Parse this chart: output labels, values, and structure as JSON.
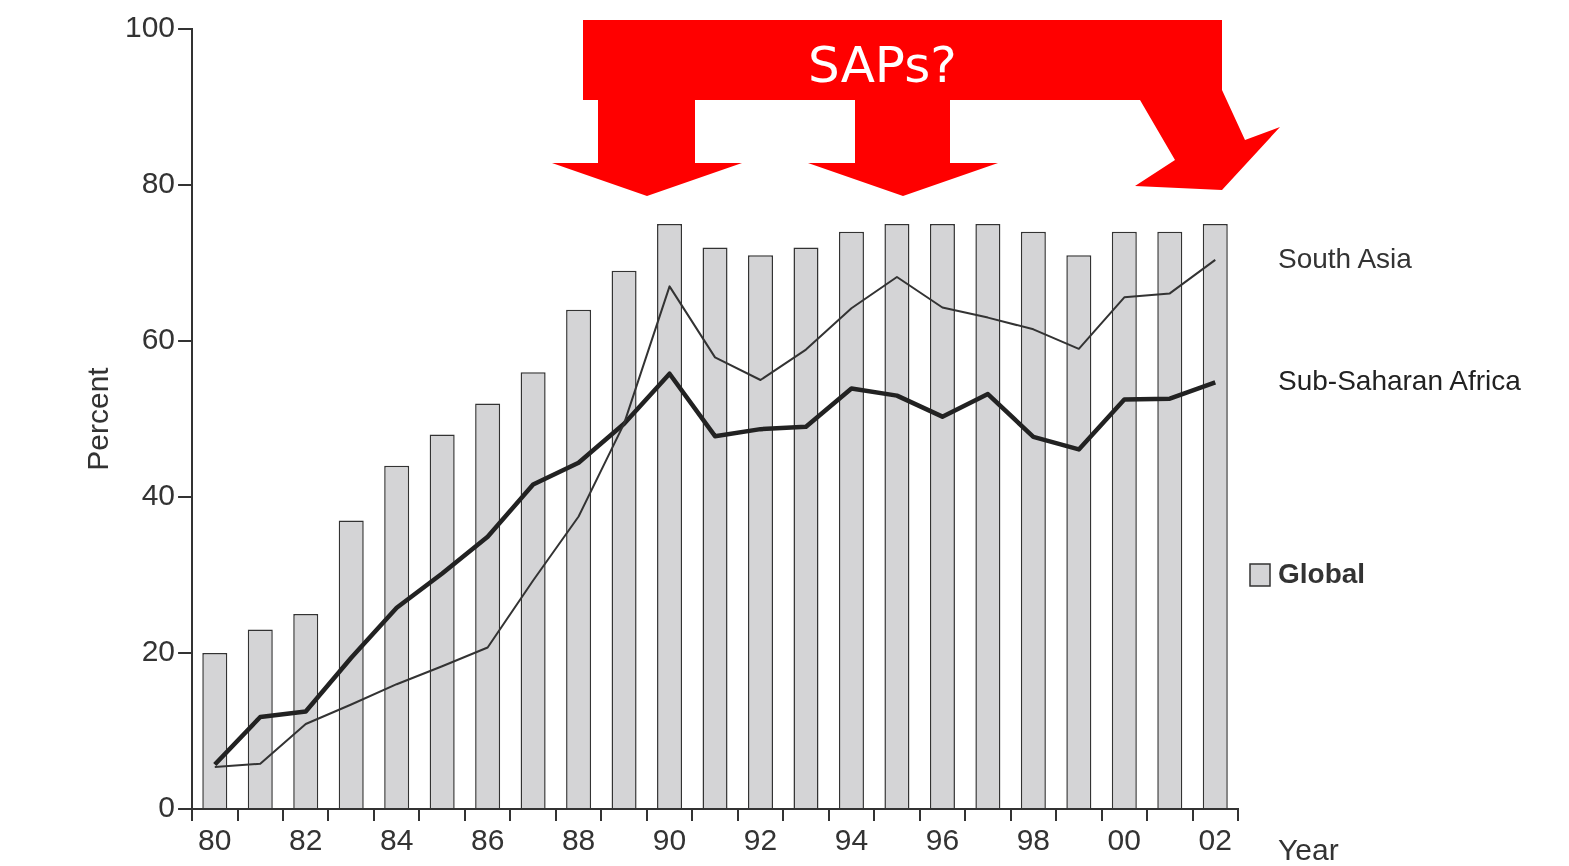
{
  "chart_data": {
    "type": "bar",
    "ylabel": "Percent",
    "xlabel": "Year",
    "categories": [
      "80",
      null,
      "82",
      null,
      "84",
      null,
      "86",
      null,
      "88",
      null,
      "90",
      null,
      "92",
      null,
      "94",
      null,
      "96",
      null,
      "98",
      null,
      "00",
      null,
      "02"
    ],
    "series": [
      {
        "name": "Global",
        "color": "#d4d4d6",
        "values": [
          20,
          23,
          25,
          37,
          44,
          48,
          52,
          56,
          64,
          69,
          75,
          72,
          71,
          72,
          74,
          75,
          75,
          75,
          74,
          71,
          74,
          74,
          75
        ]
      },
      {
        "name": "South Asia",
        "type": "line",
        "color": "#333333",
        "values": [
          5.4,
          5.8,
          10.9,
          13.4,
          16,
          18.3,
          20.7,
          29.3,
          37.5,
          49.4,
          67,
          57.9,
          55,
          58.9,
          64.2,
          68.2,
          64.3,
          63,
          61.5,
          59,
          65.6,
          66.1,
          70.4
        ]
      },
      {
        "name": "Sub-Saharan Africa",
        "type": "line",
        "color": "#222222",
        "values": [
          5.7,
          11.8,
          12.5,
          19.4,
          25.8,
          30.2,
          34.9,
          41.6,
          44.4,
          49.4,
          55.8,
          47.8,
          48.7,
          49,
          53.9,
          53,
          50.3,
          53.2,
          47.7,
          46.1,
          52.5,
          52.6,
          54.7
        ]
      }
    ],
    "ylim": [
      0,
      100
    ],
    "yticks": [
      0,
      20,
      40,
      60,
      80,
      100
    ],
    "grid": false,
    "legend": "right",
    "marker": "none",
    "annotations": [
      "SAPs?"
    ]
  }
}
